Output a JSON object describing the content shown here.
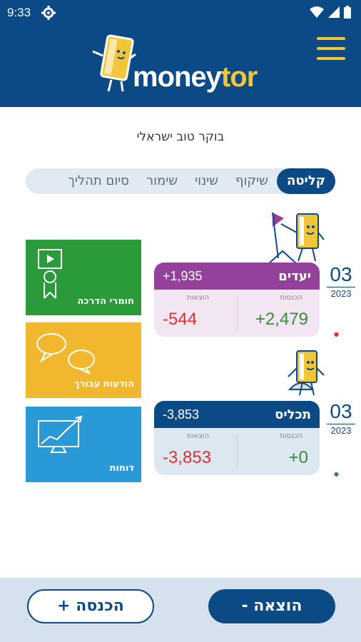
{
  "status_bar": {
    "time": "9:33",
    "icons": [
      "gear-icon",
      "wifi-icon",
      "signal-icon",
      "battery-icon"
    ]
  },
  "header": {
    "logo_part1": "money",
    "logo_part2": "tor",
    "menu_icon": "hamburger-menu-icon"
  },
  "greeting": "בוקר טוב ישראלי",
  "tabs": [
    {
      "label": "קליטה",
      "active": true
    },
    {
      "label": "שיקוף",
      "active": false
    },
    {
      "label": "שינוי",
      "active": false
    },
    {
      "label": "שימור",
      "active": false
    },
    {
      "label": "סיום תהליך",
      "active": false
    }
  ],
  "tiles": [
    {
      "label": "חומרי הדרכה",
      "color": "#2a9a3a",
      "icon": "training-video-icon"
    },
    {
      "label": "הודעות עבורך",
      "color": "#f0b72f",
      "icon": "chat-bubbles-icon"
    },
    {
      "label": "דוחות",
      "color": "#2a9ad6",
      "icon": "chart-monitor-icon"
    }
  ],
  "cards": [
    {
      "title": "יעדים",
      "total": "+1,935",
      "header_color": "#93419a",
      "body_color": "#f1e6f1",
      "income_label": "הכנסות",
      "expense_label": "הוצאות",
      "income": "+2,479",
      "expense": "-544",
      "day": "03",
      "year": "2023"
    },
    {
      "title": "תכליס",
      "total": "-3,853",
      "header_color": "#0b4a84",
      "body_color": "#dde7f1",
      "income_label": "הכנסות",
      "expense_label": "הוצאות",
      "income": "+0",
      "expense": "-3,853",
      "day": "03",
      "year": "2023"
    }
  ],
  "bottom": {
    "income_button": "הכנסה +",
    "expense_button": "הוצאה -"
  },
  "colors": {
    "primary": "#0b4a84",
    "accent": "#f3c63a",
    "income": "#3c8a3c",
    "expense": "#e02f2f"
  }
}
